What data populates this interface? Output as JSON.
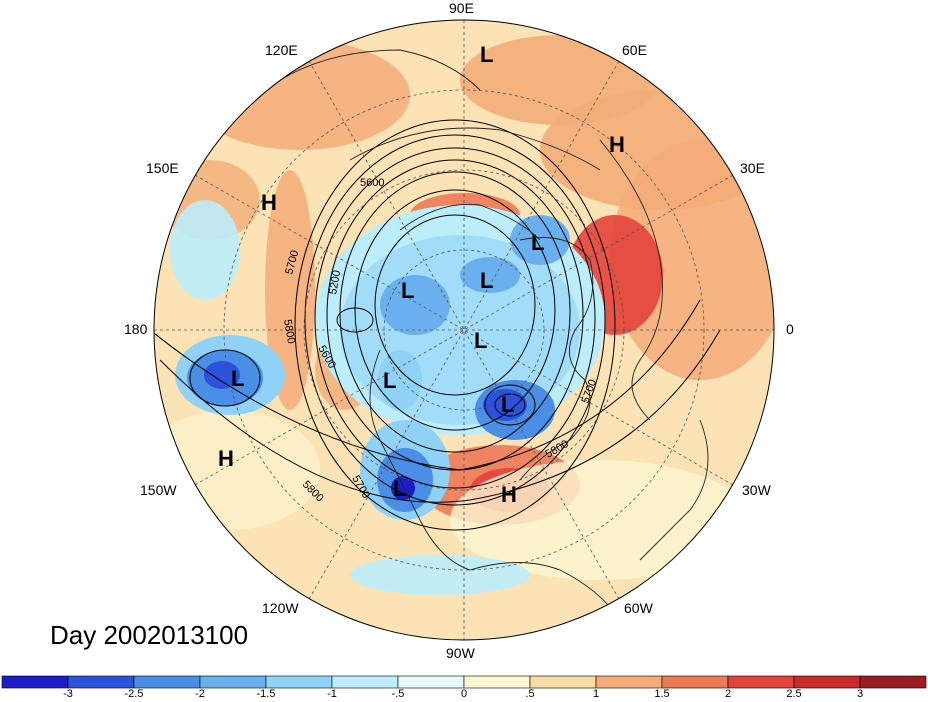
{
  "map": {
    "projection": "north-polar-stereographic",
    "day_label": "Day 2002013100",
    "longitude_labels": [
      "90E",
      "60E",
      "30E",
      "0",
      "30W",
      "60W",
      "90W",
      "120W",
      "150W",
      "180",
      "150E",
      "120E"
    ],
    "contour_labels": [
      "5600",
      "5700",
      "5200",
      "5800",
      "5600",
      "5700",
      "5800",
      "5700",
      "5800"
    ],
    "pressure_centers": [
      {
        "type": "L",
        "region": "northern Siberia"
      },
      {
        "type": "H",
        "region": "Urals"
      },
      {
        "type": "H",
        "region": "north-west Pacific"
      },
      {
        "type": "L",
        "region": "East Siberian Sea"
      },
      {
        "type": "L",
        "region": "Kara Sea"
      },
      {
        "type": "L",
        "region": "Barents Sea"
      },
      {
        "type": "L",
        "region": "North Pole"
      },
      {
        "type": "L",
        "region": "Gulf of Alaska"
      },
      {
        "type": "L",
        "region": "Canada"
      },
      {
        "type": "L",
        "region": "Labrador Sea"
      },
      {
        "type": "H",
        "region": "central Pacific"
      },
      {
        "type": "L",
        "region": "south-western United States"
      },
      {
        "type": "H",
        "region": "western Atlantic"
      }
    ],
    "anomaly_colors": {
      "strong_warm": "#e8443a",
      "warm": "#f3a066",
      "mild_warm": "#fad8a8",
      "neutral": "#fdf5d8",
      "mild_cold": "#bfe8f8",
      "cold": "#78bde9",
      "strong_cold": "#2f7ad8"
    }
  },
  "colorbar": {
    "ticks": [
      "-3",
      "-2.5",
      "-2",
      "-1.5",
      "-1",
      "-.5",
      "0",
      ".5",
      "1",
      "1.5",
      "2",
      "2.5",
      "3"
    ],
    "colors": [
      "#1c1cc8",
      "#2b52da",
      "#4a8ee5",
      "#6bb0ee",
      "#90d2f6",
      "#bcedfb",
      "#e4fafd",
      "#fdf6d2",
      "#f9dda5",
      "#f3ac78",
      "#ec7a56",
      "#e4433a",
      "#c82a2a",
      "#9b1c20"
    ]
  }
}
